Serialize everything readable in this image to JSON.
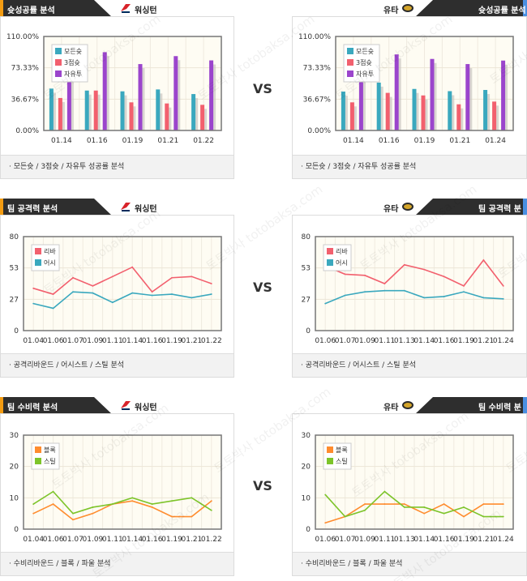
{
  "vs_label": "VS",
  "watermark": "토토박사 totobaksa.com",
  "teams": {
    "left": "워싱턴",
    "right": "유타"
  },
  "colors": {
    "left_accent": "#f39c12",
    "right_accent": "#4a90e2",
    "teal": "#3aa8be",
    "red": "#f2606e",
    "purple": "#9b45cc",
    "orange": "#ff8c2e",
    "green": "#7dc42a",
    "plot_bg": "#fefcf3"
  },
  "sections": [
    {
      "title": "슛성공률 분석",
      "footer": "· 모든슛 / 3점슛 / 자유투 성공률 분석",
      "chart_data": [
        {
          "type": "bar",
          "team": "워싱턴",
          "categories": [
            "01.14",
            "01.16",
            "01.19",
            "01.21",
            "01.22"
          ],
          "ylim": [
            0,
            110
          ],
          "yticks": [
            "0.00%",
            "36.67%",
            "73.33%",
            "110.00%"
          ],
          "legend": "top-left",
          "grid": true,
          "series": [
            {
              "name": "모든슛",
              "color": "#3aa8be",
              "values": [
                49,
                46.7,
                45.8,
                48,
                42.6
              ]
            },
            {
              "name": "3점슛",
              "color": "#f2606e",
              "values": [
                38,
                46.7,
                32.9,
                31.6,
                30
              ]
            },
            {
              "name": "자유투",
              "color": "#9b45cc",
              "values": [
                65,
                91.6,
                77.7,
                87,
                82
              ]
            }
          ]
        },
        {
          "type": "bar",
          "team": "유타",
          "categories": [
            "01.14",
            "01.16",
            "01.19",
            "01.21",
            "01.24"
          ],
          "ylim": [
            0,
            110
          ],
          "yticks": [
            "0.00%",
            "36.67%",
            "73.33%",
            "110.00%"
          ],
          "legend": "top-left",
          "grid": true,
          "series": [
            {
              "name": "모든슛",
              "color": "#3aa8be",
              "values": [
                45.5,
                56,
                48.6,
                46,
                47.4
              ]
            },
            {
              "name": "3점슛",
              "color": "#f2606e",
              "values": [
                32.9,
                44,
                41,
                30.6,
                33.8
              ]
            },
            {
              "name": "자유투",
              "color": "#9b45cc",
              "values": [
                62,
                89,
                83.7,
                77.7,
                81.8
              ]
            }
          ]
        }
      ]
    },
    {
      "title": "팀 공격력 분석",
      "footer": "· 공격리바운드 / 어시스트 / 스틸 분석",
      "chart_data": [
        {
          "type": "line",
          "team": "워싱턴",
          "categories": [
            "01.04",
            "01.06",
            "01.07",
            "01.09",
            "01.11",
            "01.14",
            "01.16",
            "01.19",
            "01.21",
            "01.22"
          ],
          "ylim": [
            0,
            80
          ],
          "yticks": [
            "0",
            "27",
            "53",
            "80"
          ],
          "legend": "top-left",
          "grid": true,
          "series": [
            {
              "name": "리바",
              "color": "#f2606e",
              "values": [
                36,
                31,
                45,
                38,
                46,
                54,
                33,
                45,
                46,
                40
              ]
            },
            {
              "name": "어시",
              "color": "#3aa8be",
              "values": [
                23,
                19,
                33,
                32,
                24,
                32,
                30,
                31,
                28,
                31
              ]
            }
          ]
        },
        {
          "type": "line",
          "team": "유타",
          "categories": [
            "01.06",
            "01.07",
            "01.09",
            "01.11",
            "01.13",
            "01.14",
            "01.16",
            "01.19",
            "01.21",
            "01.24"
          ],
          "ylim": [
            0,
            80
          ],
          "yticks": [
            "0",
            "27",
            "53",
            "80"
          ],
          "legend": "top-left",
          "grid": true,
          "series": [
            {
              "name": "리바",
              "color": "#f2606e",
              "values": [
                55,
                48,
                47,
                40,
                56,
                52,
                46,
                38,
                60,
                38
              ]
            },
            {
              "name": "어시",
              "color": "#3aa8be",
              "values": [
                23,
                30,
                33,
                34,
                34,
                28,
                29,
                33,
                28,
                27
              ]
            }
          ]
        }
      ]
    },
    {
      "title": "팀 수비력 분석",
      "footer": "· 수비리바운드 / 블록 / 파울 분석",
      "chart_data": [
        {
          "type": "line",
          "team": "워싱턴",
          "categories": [
            "01.04",
            "01.06",
            "01.07",
            "01.09",
            "01.11",
            "01.14",
            "01.16",
            "01.19",
            "01.21",
            "01.22"
          ],
          "ylim": [
            0,
            30
          ],
          "yticks": [
            "0",
            "10",
            "20",
            "30"
          ],
          "legend": "top-left",
          "grid": true,
          "series": [
            {
              "name": "블록",
              "color": "#ff8c2e",
              "values": [
                5,
                8,
                3,
                5,
                8,
                9,
                7,
                4,
                4,
                9
              ]
            },
            {
              "name": "스틸",
              "color": "#7dc42a",
              "values": [
                8,
                12,
                5,
                7,
                8,
                10,
                8,
                9,
                10,
                6
              ]
            }
          ]
        },
        {
          "type": "line",
          "team": "유타",
          "categories": [
            "01.06",
            "01.07",
            "01.09",
            "01.11",
            "01.13",
            "01.14",
            "01.16",
            "01.19",
            "01.21",
            "01.24"
          ],
          "ylim": [
            0,
            30
          ],
          "yticks": [
            "0",
            "10",
            "20",
            "30"
          ],
          "legend": "top-left",
          "grid": true,
          "series": [
            {
              "name": "블록",
              "color": "#ff8c2e",
              "values": [
                2,
                4,
                8,
                8,
                8,
                5,
                8,
                4,
                8,
                8
              ]
            },
            {
              "name": "스틸",
              "color": "#7dc42a",
              "values": [
                11,
                4,
                6,
                12,
                7,
                7,
                5,
                7,
                4,
                4
              ]
            }
          ]
        }
      ]
    }
  ]
}
